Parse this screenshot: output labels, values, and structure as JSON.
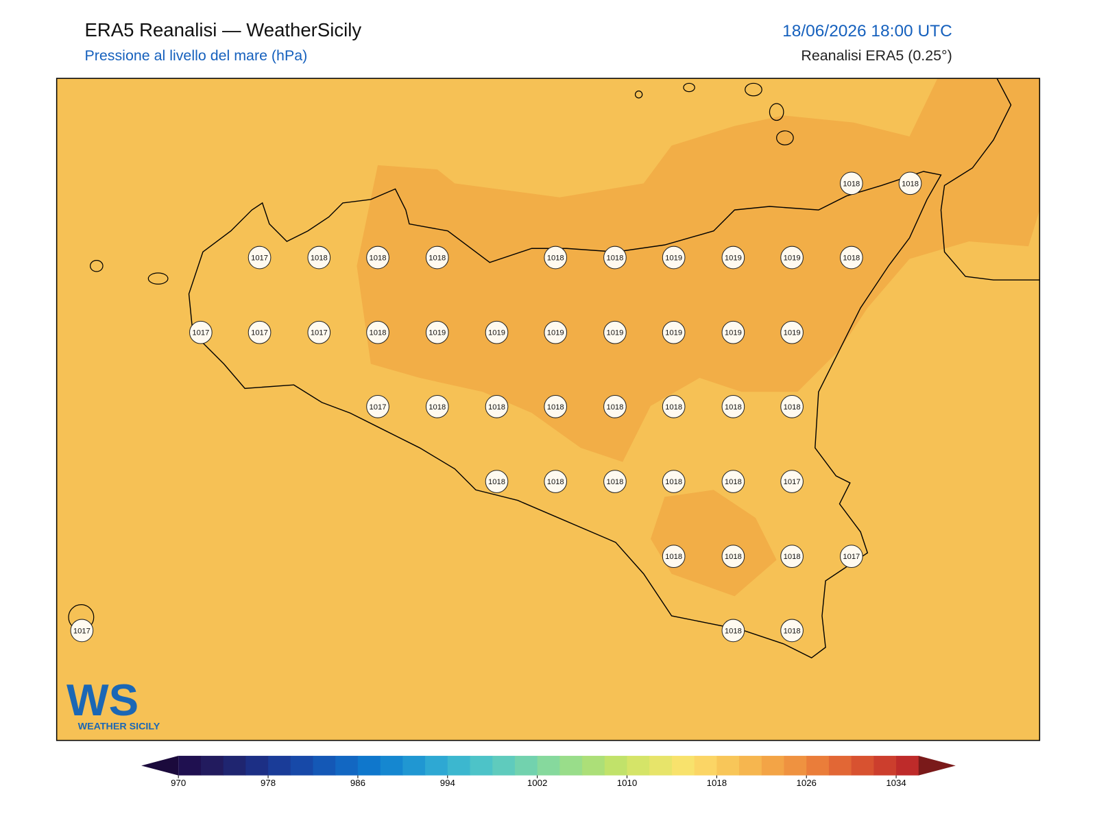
{
  "header": {
    "title": "ERA5 Reanalisi — WeatherSicily",
    "subtitle": "Pressione al livello del mare (hPa)",
    "datetime": "18/06/2026 18:00 UTC",
    "source": "Reanalisi ERA5 (0.25°)"
  },
  "stations": [
    1018,
    1018,
    1017,
    1018,
    1018,
    1018,
    1018,
    1018,
    1019,
    1019,
    1019,
    1018,
    1017,
    1017,
    1017,
    1018,
    1019,
    1019,
    1019,
    1019,
    1019,
    1019,
    1019,
    1017,
    1018,
    1018,
    1018,
    1018,
    1018,
    1018,
    1018,
    1018,
    1018,
    1018,
    1018,
    1018,
    1017,
    1018,
    1018,
    1018,
    1017,
    1017,
    1018,
    1018
  ],
  "colorbar": {
    "clim": [
      970,
      1036
    ],
    "step": 2,
    "ticks": [
      970,
      978,
      986,
      994,
      1002,
      1010,
      1018,
      1026,
      1034
    ],
    "colors": [
      "#1f1050",
      "#221b5e",
      "#1f2570",
      "#1c2f85",
      "#1a3c98",
      "#1749a8",
      "#1458b6",
      "#1267c2",
      "#0f77cc",
      "#1587d0",
      "#2097d2",
      "#2ea8d3",
      "#3cb7cf",
      "#4dc3c8",
      "#5fcbbd",
      "#72d2ae",
      "#86d99d",
      "#99dd8a",
      "#acdf78",
      "#c1e26a",
      "#d5e468",
      "#e7e46a",
      "#f8e26c",
      "#fbd565",
      "#f8c659",
      "#f6b64f",
      "#f3a446",
      "#ef9240",
      "#ea7d3a",
      "#e26735",
      "#d85230",
      "#cc3e2d",
      "#be2b2a"
    ],
    "under": "#1b0a3c",
    "over": "#7a1a1a"
  },
  "logo": {
    "mark": "WS",
    "text": "WEATHER SICILY"
  }
}
